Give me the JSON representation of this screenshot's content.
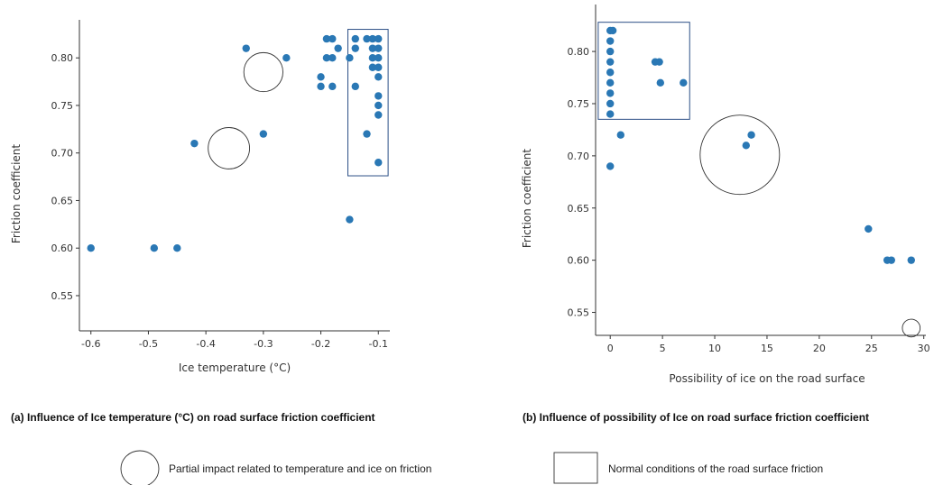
{
  "point_color": "#2a78b5",
  "chart_data": [
    {
      "type": "scatter",
      "id": "a",
      "title": "",
      "xlabel": "Ice temperature (°C)",
      "ylabel": "Friction coefficient",
      "xlim": [
        -0.62,
        -0.08
      ],
      "ylim": [
        0.513,
        0.84
      ],
      "xticks": [
        -0.6,
        -0.5,
        -0.4,
        -0.3,
        -0.2,
        -0.1
      ],
      "xtick_labels": [
        "-0.6",
        "-0.5",
        "-0.4",
        "-0.3",
        "-0.2",
        "-0.1"
      ],
      "yticks": [
        0.55,
        0.6,
        0.65,
        0.7,
        0.75,
        0.8
      ],
      "ytick_labels": [
        "0.55",
        "0.60",
        "0.65",
        "0.70",
        "0.75",
        "0.80"
      ],
      "points": [
        {
          "x": -0.6,
          "y": 0.6
        },
        {
          "x": -0.49,
          "y": 0.6
        },
        {
          "x": -0.45,
          "y": 0.6
        },
        {
          "x": -0.42,
          "y": 0.71
        },
        {
          "x": -0.3,
          "y": 0.72
        },
        {
          "x": -0.33,
          "y": 0.81
        },
        {
          "x": -0.26,
          "y": 0.8
        },
        {
          "x": -0.15,
          "y": 0.63
        },
        {
          "x": -0.12,
          "y": 0.72
        },
        {
          "x": -0.1,
          "y": 0.69
        },
        {
          "x": -0.2,
          "y": 0.78
        },
        {
          "x": -0.2,
          "y": 0.77
        },
        {
          "x": -0.19,
          "y": 0.82
        },
        {
          "x": -0.19,
          "y": 0.8
        },
        {
          "x": -0.18,
          "y": 0.82
        },
        {
          "x": -0.18,
          "y": 0.8
        },
        {
          "x": -0.18,
          "y": 0.77
        },
        {
          "x": -0.17,
          "y": 0.81
        },
        {
          "x": -0.15,
          "y": 0.8
        },
        {
          "x": -0.14,
          "y": 0.82
        },
        {
          "x": -0.14,
          "y": 0.81
        },
        {
          "x": -0.14,
          "y": 0.77
        },
        {
          "x": -0.12,
          "y": 0.82
        },
        {
          "x": -0.11,
          "y": 0.82
        },
        {
          "x": -0.11,
          "y": 0.81
        },
        {
          "x": -0.11,
          "y": 0.8
        },
        {
          "x": -0.11,
          "y": 0.79
        },
        {
          "x": -0.1,
          "y": 0.82
        },
        {
          "x": -0.1,
          "y": 0.81
        },
        {
          "x": -0.1,
          "y": 0.8
        },
        {
          "x": -0.1,
          "y": 0.79
        },
        {
          "x": -0.1,
          "y": 0.78
        },
        {
          "x": -0.1,
          "y": 0.76
        },
        {
          "x": -0.1,
          "y": 0.75
        },
        {
          "x": -0.1,
          "y": 0.74
        }
      ],
      "circles": [
        {
          "cx": -0.3,
          "cy": 0.785,
          "r": 0.034
        },
        {
          "cx": -0.36,
          "cy": 0.705,
          "r": 0.036
        }
      ],
      "rects": [
        {
          "x0": -0.153,
          "x1": -0.083,
          "y0": 0.676,
          "y1": 0.83
        }
      ]
    },
    {
      "type": "scatter",
      "id": "b",
      "title": "",
      "xlabel": "Possibility of ice on the road surface",
      "ylabel": "Friction coefficient",
      "xlim": [
        -1.4,
        30.2
      ],
      "ylim": [
        0.528,
        0.845
      ],
      "xticks": [
        0,
        5,
        10,
        15,
        20,
        25,
        30
      ],
      "xtick_labels": [
        "0",
        "5",
        "10",
        "15",
        "20",
        "25",
        "30"
      ],
      "yticks": [
        0.55,
        0.6,
        0.65,
        0.7,
        0.75,
        0.8
      ],
      "ytick_labels": [
        "0.55",
        "0.60",
        "0.65",
        "0.70",
        "0.75",
        "0.80"
      ],
      "points": [
        {
          "x": 0,
          "y": 0.82
        },
        {
          "x": 0,
          "y": 0.81
        },
        {
          "x": 0,
          "y": 0.8
        },
        {
          "x": 0,
          "y": 0.79
        },
        {
          "x": 0,
          "y": 0.78
        },
        {
          "x": 0,
          "y": 0.77
        },
        {
          "x": 0,
          "y": 0.76
        },
        {
          "x": 0,
          "y": 0.75
        },
        {
          "x": 0,
          "y": 0.74
        },
        {
          "x": 0.25,
          "y": 0.82
        },
        {
          "x": 0,
          "y": 0.69
        },
        {
          "x": 1,
          "y": 0.72
        },
        {
          "x": 4.3,
          "y": 0.79
        },
        {
          "x": 4.7,
          "y": 0.79
        },
        {
          "x": 4.8,
          "y": 0.77
        },
        {
          "x": 7,
          "y": 0.77
        },
        {
          "x": 13,
          "y": 0.71
        },
        {
          "x": 13.5,
          "y": 0.72
        },
        {
          "x": 24.7,
          "y": 0.63
        },
        {
          "x": 26.5,
          "y": 0.6
        },
        {
          "x": 26.9,
          "y": 0.6
        },
        {
          "x": 28.8,
          "y": 0.6
        }
      ],
      "circles": [
        {
          "cx": 12.4,
          "cy": 0.701,
          "r": 3.8
        },
        {
          "cx": 28.8,
          "cy": 0.535,
          "r": 0.85
        }
      ],
      "rects": [
        {
          "x0": -1.15,
          "x1": 7.6,
          "y0": 0.735,
          "y1": 0.828
        }
      ]
    }
  ],
  "captions": {
    "a": "(a) Influence of Ice temperature (°C) on road surface friction coefficient",
    "b": "(b) Influence of  possibility of Ice  on road surface friction coefficient"
  },
  "legend": {
    "circle_label": "Partial impact related to temperature and ice on friction",
    "rect_label": "Normal conditions of the road surface friction"
  }
}
